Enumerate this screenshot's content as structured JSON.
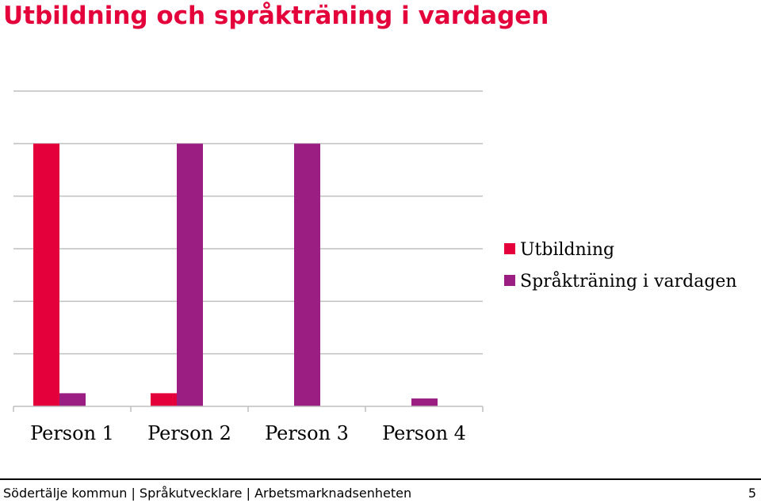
{
  "slide": {
    "title": "Utbildning och språkträning i vardagen",
    "title_color": "#e4003a"
  },
  "chart_data": {
    "type": "bar",
    "categories": [
      "Person 1",
      "Person 2",
      "Person 3",
      "Person 4"
    ],
    "series": [
      {
        "name": "Utbildning",
        "color": "#e4003a",
        "values": [
          100,
          5,
          0,
          0
        ]
      },
      {
        "name": "Språkträning i vardagen",
        "color": "#9b1f82",
        "values": [
          5,
          100,
          100,
          3
        ]
      }
    ],
    "ylim": [
      0,
      120
    ],
    "grid": true,
    "legend": "right"
  },
  "footer": {
    "text": "Södertälje kommun | Språkutvecklare | Arbetsmarknadsenheten",
    "page": "5"
  }
}
